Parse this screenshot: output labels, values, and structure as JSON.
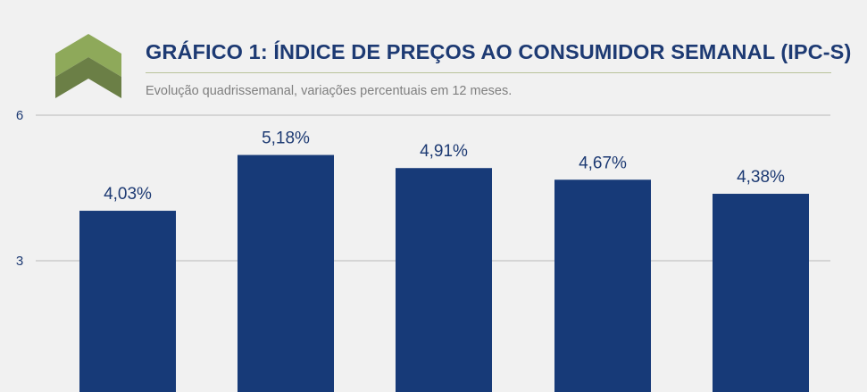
{
  "header": {
    "title": "GRÁFICO 1: ÍNDICE DE PREÇOS AO CONSUMIDOR SEMANAL (IPC-S)",
    "subtitle": "Evolução quadrissemanal, variações percentuais em 12 meses."
  },
  "colors": {
    "bar": "#173a78",
    "title": "#1d3a73",
    "logo_light": "#8ea95a",
    "logo_dark": "#6b7f46",
    "gridline": "#cccccc"
  },
  "chart_data": {
    "type": "bar",
    "categories": [
      "",
      "",
      "",
      "",
      ""
    ],
    "values": [
      4.03,
      5.18,
      4.91,
      4.67,
      4.38
    ],
    "data_labels": [
      "4,03%",
      "5,18%",
      "4,91%",
      "4,67%",
      "4,38%"
    ],
    "yticks": [
      3,
      6
    ],
    "ytick_labels": [
      "3",
      "6"
    ],
    "ylim": [
      0,
      6
    ],
    "grid": true,
    "xlabel": "",
    "ylabel": ""
  }
}
